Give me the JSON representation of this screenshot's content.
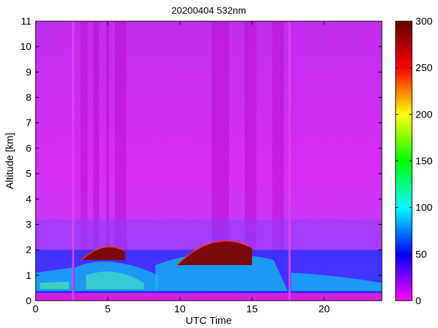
{
  "chart_data": {
    "type": "heatmap",
    "title": "20200404 532nm",
    "xlabel": "UTC Time",
    "ylabel": "Altitude [km]",
    "xlim": [
      0,
      24
    ],
    "ylim": [
      0,
      11
    ],
    "xticks": [
      0,
      5,
      10,
      15,
      20
    ],
    "yticks": [
      0,
      1,
      2,
      3,
      4,
      5,
      6,
      7,
      8,
      9,
      10,
      11
    ],
    "colorbar": {
      "range": [
        0,
        300
      ],
      "ticks": [
        0,
        50,
        100,
        150,
        200,
        250,
        300
      ],
      "colormap": [
        "#ff00ff",
        "#0000ff",
        "#00ffff",
        "#00ff00",
        "#ffff00",
        "#ff0000",
        "#660000"
      ]
    },
    "features": {
      "background_color": "#ee11ee",
      "surface_layer_km": [
        0.0,
        0.35
      ],
      "data_gaps_utc": [
        2.6,
        17.6
      ],
      "aerosol_layer_km": [
        0.35,
        2.0
      ],
      "cloud_layers": [
        {
          "x_start": 3.2,
          "x_end": 6.2,
          "base_km": 1.6,
          "top_km": 2.3
        },
        {
          "x_start": 9.8,
          "x_end": 15.0,
          "base_km": 1.4,
          "top_km": 2.75
        }
      ]
    }
  }
}
